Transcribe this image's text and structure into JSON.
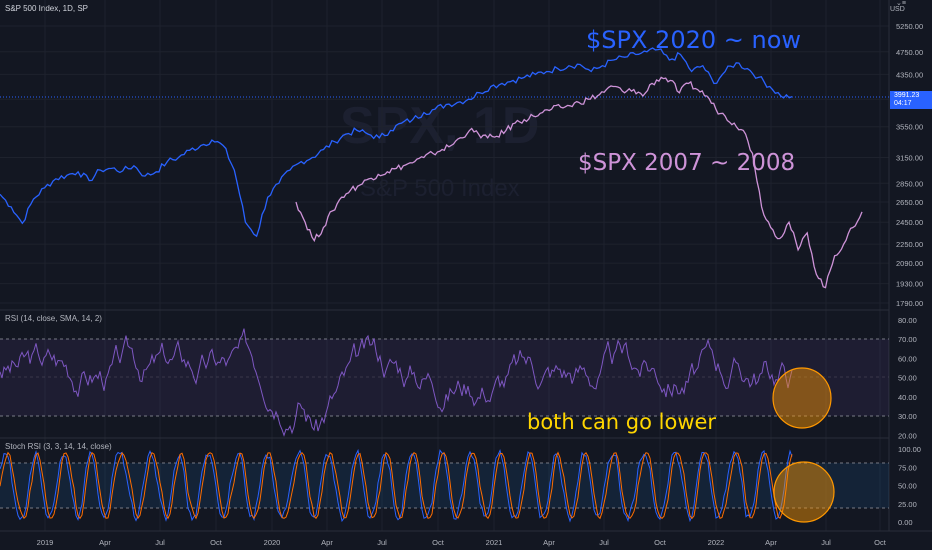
{
  "header": {
    "title": "S&P 500 Index, 1D, SP",
    "currency": "USD"
  },
  "watermark": {
    "symbol": "SPX, 1D",
    "name": "S&P 500 Index"
  },
  "annotations": {
    "label_2020": "$SPX 2020 ~ now",
    "label_2007": "$SPX 2007 ~ 2008",
    "caption": "both can go lower",
    "colors": {
      "label_2020": "#2962ff",
      "label_2007": "#ce93d8",
      "caption": "#ffd600",
      "circle": "#ff9800"
    }
  },
  "price_scale": {
    "ticks": [
      "5250.00",
      "4750.00",
      "4350.00",
      "3950.00",
      "3550.00",
      "3150.00",
      "2850.00",
      "2650.00",
      "2450.00",
      "2250.00",
      "2090.00",
      "1930.00",
      "1790.00"
    ],
    "last_price": "3991.23",
    "countdown": "04:17"
  },
  "time_axis": {
    "ticks": [
      "2019",
      "Apr",
      "Jul",
      "Oct",
      "2020",
      "Apr",
      "Jul",
      "Oct",
      "2021",
      "Apr",
      "Jul",
      "Oct",
      "2022",
      "Apr",
      "Jul",
      "Oct"
    ]
  },
  "rsi_pane": {
    "title": "RSI (14, close, SMA, 14, 2)",
    "ticks": [
      "80.00",
      "70.00",
      "60.00",
      "50.00",
      "40.00",
      "30.00",
      "20.00"
    ]
  },
  "stoch_pane": {
    "title": "Stoch RSI (3, 3, 14, 14, close)",
    "ticks": [
      "100.00",
      "75.00",
      "50.00",
      "25.00",
      "0.00"
    ]
  },
  "chart_data": {
    "type": "line",
    "series": [
      {
        "name": "$SPX 2020 ~ now",
        "color": "#2962ff",
        "values": [
          2730,
          2600,
          2440,
          2680,
          2800,
          2900,
          2940,
          2980,
          2880,
          3000,
          3020,
          2990,
          3050,
          2930,
          2980,
          3100,
          3150,
          3240,
          3300,
          3370,
          3300,
          3000,
          2450,
          2320,
          2700,
          2850,
          3000,
          3100,
          3150,
          3250,
          3350,
          3450,
          3500,
          3450,
          3400,
          3500,
          3600,
          3650,
          3750,
          3800,
          3870,
          3900,
          3950,
          4050,
          4150,
          4200,
          4250,
          4300,
          4350,
          4400,
          4450,
          4500,
          4520,
          4400,
          4500,
          4600,
          4650,
          4700,
          4750,
          4790,
          4600,
          4700,
          4400,
          4500,
          4200,
          4400,
          4550,
          4450,
          4300,
          4150,
          4000,
          3991
        ]
      },
      {
        "name": "$SPX 2007 ~ 2008",
        "color": "#ce93d8",
        "values": [
          2650,
          2450,
          2280,
          2400,
          2560,
          2700,
          2780,
          2830,
          2900,
          2950,
          2980,
          3020,
          3060,
          3100,
          3150,
          3200,
          3250,
          3300,
          3400,
          3500,
          3450,
          3400,
          3420,
          3500,
          3600,
          3650,
          3700,
          3750,
          3800,
          3830,
          3850,
          3900,
          3950,
          4000,
          4100,
          4150,
          4050,
          4100,
          4000,
          4200,
          4300,
          4250,
          4050,
          4200,
          4100,
          4000,
          3800,
          3700,
          3600,
          3500,
          3200,
          2600,
          2400,
          2300,
          2450,
          2200,
          2350,
          2000,
          1900,
          2150,
          2250,
          2400,
          2550
        ]
      }
    ],
    "yscale": "log",
    "ylim": [
      1790,
      5250
    ]
  }
}
